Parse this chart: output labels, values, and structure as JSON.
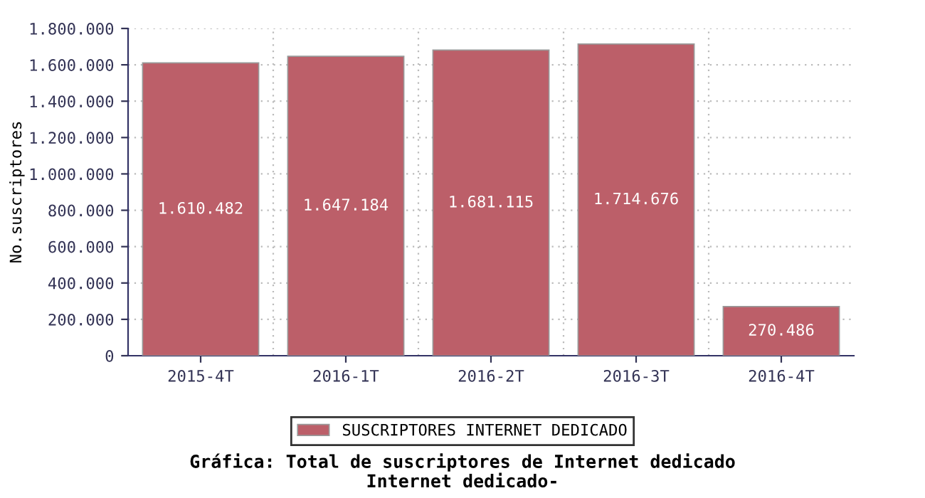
{
  "chart_data": {
    "type": "bar",
    "title": "Gráfica: Total de suscriptores de Internet dedicado",
    "subtitle": "Internet dedicado-",
    "ylabel": "No.suscriptores",
    "categories": [
      "2015-4T",
      "2016-1T",
      "2016-2T",
      "2016-3T",
      "2016-4T"
    ],
    "series": [
      {
        "name": "SUSCRIPTORES INTERNET DEDICADO",
        "color": "#bc5f69",
        "values": [
          1610482,
          1647184,
          1681115,
          1714676,
          270486
        ],
        "value_labels": [
          "1.610.482",
          "1.647.184",
          "1.681.115",
          "1.714.676",
          "270.486"
        ]
      }
    ],
    "ylim": [
      0,
      1800000
    ],
    "yticks": [
      0,
      {
        "value": 200000,
        "label": "200.000"
      },
      {
        "value": 400000,
        "label": "400.000"
      },
      {
        "value": 600000,
        "label": "600.000"
      },
      {
        "value": 800000,
        "label": "800.000"
      },
      {
        "value": 1000000,
        "label": "1.000.000"
      },
      {
        "value": 1200000,
        "label": "1.200.000"
      },
      {
        "value": 1400000,
        "label": "1.400.000"
      },
      {
        "value": 1600000,
        "label": "1.600.000"
      },
      {
        "value": 1800000,
        "label": "1.800.000"
      }
    ],
    "grid": true,
    "legend": "bottom"
  }
}
